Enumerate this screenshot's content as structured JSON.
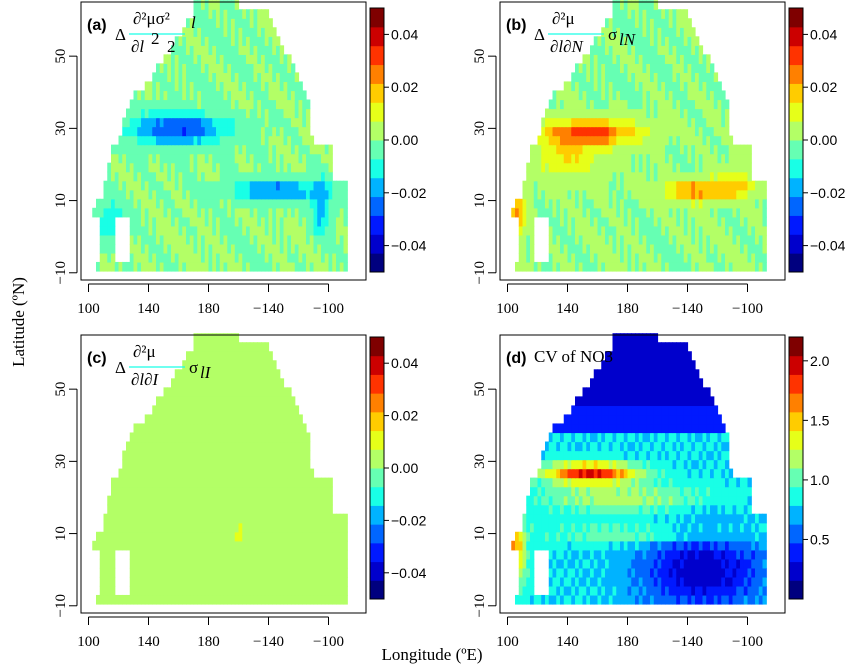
{
  "figure": {
    "xlabel": "Longitude (ºE)",
    "ylabel": "Latitude (ºN)"
  },
  "colors": {
    "colormap": [
      "#00007f",
      "#0000cc",
      "#0019ff",
      "#0066ff",
      "#00b3ff",
      "#19ffe6",
      "#66ffb3",
      "#b3ff66",
      "#e6ff19",
      "#ffcc00",
      "#ff8000",
      "#ff3300",
      "#cc0000",
      "#7f0000"
    ],
    "land": "#ffffff",
    "frame": "#000000"
  },
  "chart_data": [
    {
      "type": "heatmap",
      "panel": "(a)",
      "formula": {
        "delta": "Δ",
        "numerator": "∂²μσ²",
        "numerator_sub": "l",
        "den_main": "∂l",
        "den_sup": "2",
        "den_tail": "2"
      },
      "x_ticks": [
        "100",
        "140",
        "180",
        "−140",
        "−100"
      ],
      "y_ticks": [
        "−10",
        "10",
        "30",
        "50"
      ],
      "colorbar": {
        "ticks": [
          "0.04",
          "0.02",
          "0.00",
          "−0.02",
          "−0.04"
        ],
        "range": [
          -0.05,
          0.05
        ]
      },
      "field_description": "mostly near 0.00 (green); negative band (-0.02 to -0.04) near 30N from 130 to 180E and near 12N from 200 to 250E; negative coastal strip near 10-20N 245E"
    },
    {
      "type": "heatmap",
      "panel": "(b)",
      "formula": {
        "delta": "Δ",
        "numerator": "∂²μ",
        "den_main": "∂l∂N",
        "tail": "σ",
        "tail_sub": "lN"
      },
      "x_ticks": [
        "100",
        "140",
        "180",
        "−140",
        "−100"
      ],
      "y_ticks": [
        "−10",
        "10",
        "30",
        "50"
      ],
      "colorbar": {
        "ticks": [
          "0.04",
          "0.02",
          "0.00",
          "−0.02",
          "−0.04"
        ],
        "range": [
          -0.05,
          0.05
        ]
      },
      "field_description": "positive band (0.02 to 0.04) near 28-30N from 130 to 190E and near 12-15N from 200 to 250E; positive west coast 0-15N 105E; rest near 0.00"
    },
    {
      "type": "heatmap",
      "panel": "(c)",
      "formula": {
        "delta": "Δ",
        "numerator": "∂²μ",
        "den_main": "∂l∂I",
        "tail": "σ",
        "tail_sub": "lI"
      },
      "x_ticks": [
        "100",
        "140",
        "180",
        "−140",
        "−100"
      ],
      "y_ticks": [
        "−10",
        "10",
        "30",
        "50"
      ],
      "colorbar": {
        "ticks": [
          "0.04",
          "0.02",
          "0.00",
          "−0.02",
          "−0.04"
        ],
        "range": [
          -0.05,
          0.05
        ]
      },
      "field_description": "nearly uniform around 0.00 to 0.005 (green)"
    },
    {
      "type": "heatmap",
      "panel": "(d)",
      "formula": {
        "text": "CV of NO3"
      },
      "x_ticks": [
        "100",
        "140",
        "180",
        "−140",
        "−100"
      ],
      "y_ticks": [
        "−10",
        "10",
        "30",
        "50"
      ],
      "colorbar": {
        "ticks": [
          "2.0",
          "1.5",
          "1.0",
          "0.5"
        ],
        "range": [
          0.0,
          2.2
        ]
      },
      "field_description": "low CV (0.1-0.4) north of 40N and south-east tropics; high CV (1.6-2.0) band near 28N from 135 to 175E; moderate 1.0-1.3 bands around 20N and 10N"
    }
  ]
}
